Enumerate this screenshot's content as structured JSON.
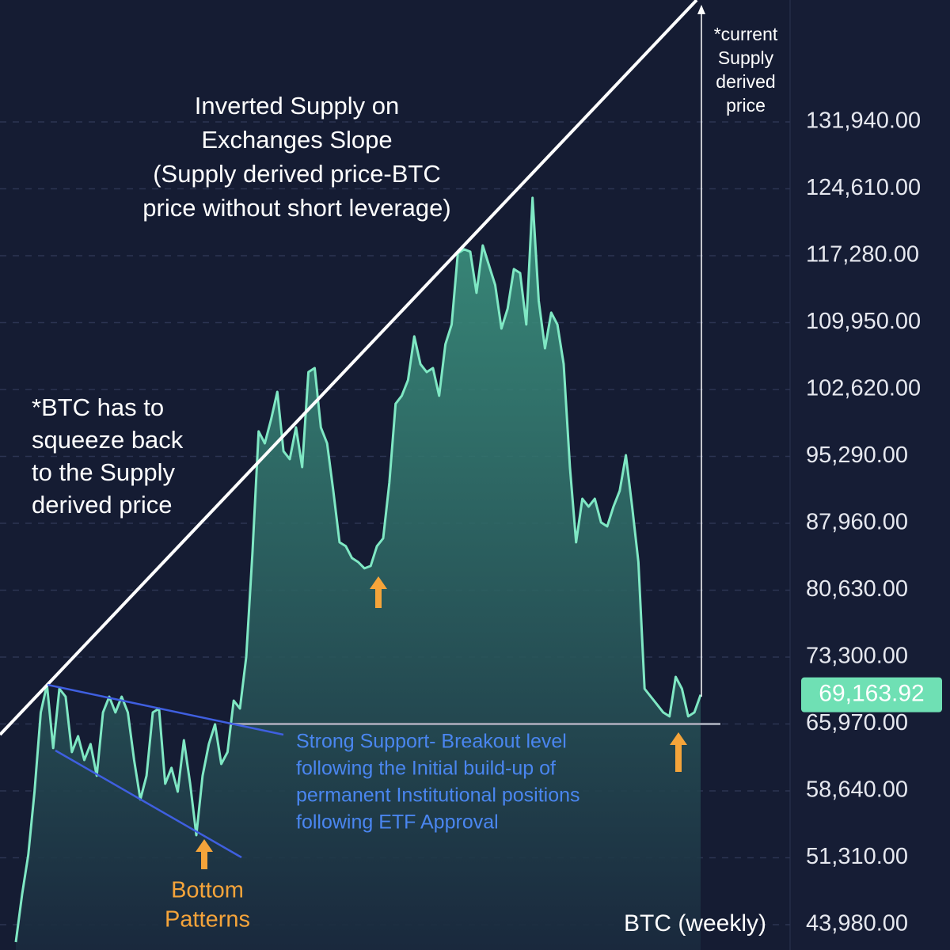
{
  "chart_data": {
    "type": "area",
    "title_lines": [
      "Inverted Supply on",
      "Exchanges Slope",
      "(Supply derived price-BTC",
      "price without short leverage)"
    ],
    "note_lines": [
      "*BTC has to",
      "squeeze back",
      "to the Supply",
      "derived price"
    ],
    "supply_note_lines": [
      "*current",
      "Supply",
      "derived",
      "price"
    ],
    "support_note_lines": [
      "Strong Support- Breakout level",
      "following the Initial build-up of",
      "permanent Institutional positions",
      "following ETF Approval"
    ],
    "bottom_note_lines": [
      "Bottom",
      "Patterns"
    ],
    "series_label": "BTC (weekly)",
    "values": [
      42070,
      47280,
      51610,
      58550,
      67230,
      70270,
      63330,
      69830,
      68960,
      62890,
      64630,
      62020,
      63760,
      60290,
      67230,
      68960,
      67230,
      68960,
      67230,
      62020,
      57690,
      60290,
      67230,
      67660,
      59420,
      61160,
      58550,
      64190,
      59420,
      53780,
      60290,
      63760,
      65930,
      61590,
      62890,
      68530,
      67660,
      73300,
      84580,
      98030,
      96720,
      99330,
      102360,
      95860,
      94990,
      98460,
      94120,
      104530,
      104970,
      98460,
      96720,
      91520,
      85880,
      85450,
      84150,
      83710,
      83020,
      83280,
      85450,
      86310,
      92390,
      101060,
      101930,
      103660,
      108440,
      105400,
      104530,
      104970,
      101930,
      107570,
      109740,
      117540,
      117980,
      117720,
      113210,
      118410,
      116240,
      114070,
      109300,
      111470,
      115810,
      115380,
      109740,
      123620,
      112340,
      107130,
      111040,
      109740,
      105400,
      94120,
      85880,
      90650,
      89780,
      90650,
      88050,
      87620,
      89780,
      91520,
      95420,
      89780,
      83710,
      69830,
      68960,
      68100,
      67230,
      66800,
      71130,
      69830,
      66800,
      67230,
      69163.92
    ],
    "color": "#7fe8c4",
    "current_price": {
      "value": 69163.92,
      "label": "69,163.92"
    },
    "support_level": 65970,
    "ylim": [
      41200,
      145300
    ],
    "yticks": [
      {
        "value": 43980,
        "label": "43,980.00"
      },
      {
        "value": 51310,
        "label": "51,310.00"
      },
      {
        "value": 58640,
        "label": "58,640.00"
      },
      {
        "value": 65970,
        "label": "65,970.00"
      },
      {
        "value": 73300,
        "label": "73,300.00"
      },
      {
        "value": 80630,
        "label": "80,630.00"
      },
      {
        "value": 87960,
        "label": "87,960.00"
      },
      {
        "value": 95290,
        "label": "95,290.00"
      },
      {
        "value": 102620,
        "label": "102,620.00"
      },
      {
        "value": 109950,
        "label": "109,950.00"
      },
      {
        "value": 117280,
        "label": "117,280.00"
      },
      {
        "value": 124610,
        "label": "124,610.00"
      },
      {
        "value": 131940,
        "label": "131,940.00"
      }
    ],
    "grid": true
  }
}
